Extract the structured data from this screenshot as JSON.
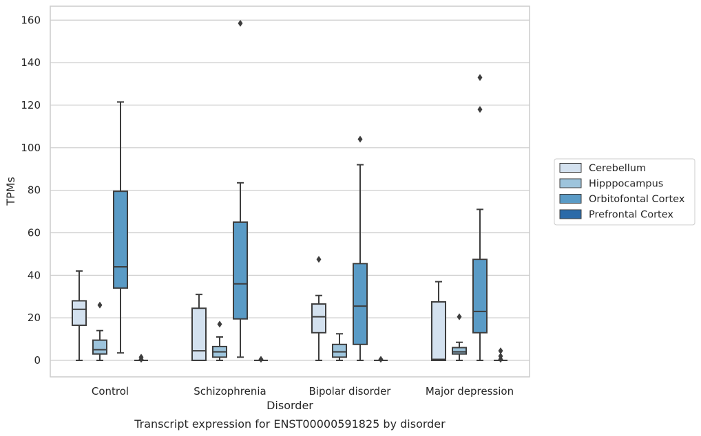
{
  "caption": "Transcript expression for ENST00000591825 by disorder",
  "chart_data": {
    "type": "box",
    "xlabel": "Disorder",
    "ylabel": "TPMs",
    "ylim": [
      -7.5,
      166
    ],
    "yticks": [
      0,
      20,
      40,
      60,
      80,
      100,
      120,
      140,
      160
    ],
    "grid": "horizontal",
    "legend_position": "right",
    "categories": [
      "Control",
      "Schizophrenia",
      "Bipolar disorder",
      "Major depression"
    ],
    "series": [
      {
        "name": "Cerebellum",
        "color": "#d3e1ef",
        "boxes": [
          {
            "whislo": 0,
            "q1": 16.5,
            "med": 24,
            "q3": 28,
            "whishi": 42,
            "fliers": []
          },
          {
            "whislo": 0,
            "q1": 0,
            "med": 4.5,
            "q3": 24.5,
            "whishi": 31,
            "fliers": []
          },
          {
            "whislo": 0,
            "q1": 13,
            "med": 20.5,
            "q3": 26.5,
            "whishi": 30.5,
            "fliers": [
              47.5
            ]
          },
          {
            "whislo": 0,
            "q1": 0,
            "med": 0.5,
            "q3": 27.5,
            "whishi": 37,
            "fliers": []
          }
        ]
      },
      {
        "name": "Hipppocampus",
        "color": "#9dc4dc",
        "boxes": [
          {
            "whislo": 0,
            "q1": 3,
            "med": 5,
            "q3": 9.5,
            "whishi": 14,
            "fliers": [
              26
            ]
          },
          {
            "whislo": 0,
            "q1": 1.5,
            "med": 4,
            "q3": 6.5,
            "whishi": 11,
            "fliers": [
              17
            ]
          },
          {
            "whislo": 0,
            "q1": 1.5,
            "med": 4,
            "q3": 7.5,
            "whishi": 12.5,
            "fliers": []
          },
          {
            "whislo": 0,
            "q1": 3,
            "med": 4,
            "q3": 6,
            "whishi": 8.5,
            "fliers": [
              20.5
            ]
          }
        ]
      },
      {
        "name": "Orbitofontal Cortex",
        "color": "#5a9bc6",
        "boxes": [
          {
            "whislo": 3.5,
            "q1": 34,
            "med": 44,
            "q3": 79.5,
            "whishi": 121.5,
            "fliers": []
          },
          {
            "whislo": 1.5,
            "q1": 19.5,
            "med": 36,
            "q3": 65,
            "whishi": 83.5,
            "fliers": [
              158.5
            ]
          },
          {
            "whislo": 0,
            "q1": 7.5,
            "med": 25.5,
            "q3": 45.5,
            "whishi": 92,
            "fliers": [
              104
            ]
          },
          {
            "whislo": 0,
            "q1": 13,
            "med": 23,
            "q3": 47.5,
            "whishi": 71,
            "fliers": [
              118,
              133
            ]
          }
        ]
      },
      {
        "name": "Prefrontal Cortex",
        "color": "#2b6aa8",
        "boxes": [
          {
            "whislo": 0,
            "q1": 0,
            "med": 0,
            "q3": 0,
            "whishi": 0,
            "fliers": [
              0.5,
              1.5
            ]
          },
          {
            "whislo": 0,
            "q1": 0,
            "med": 0,
            "q3": 0,
            "whishi": 0,
            "fliers": [
              0.5
            ]
          },
          {
            "whislo": 0,
            "q1": 0,
            "med": 0,
            "q3": 0,
            "whishi": 0,
            "fliers": [
              0.5
            ]
          },
          {
            "whislo": 0,
            "q1": 0,
            "med": 0,
            "q3": 0,
            "whishi": 0,
            "fliers": [
              0.5,
              2,
              4.5
            ]
          }
        ]
      }
    ]
  }
}
